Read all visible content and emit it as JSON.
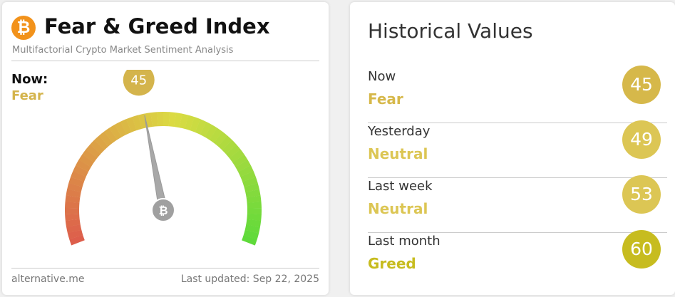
{
  "header": {
    "icon": "₿",
    "title": "Fear & Greed Index",
    "subtitle": "Multifactorial Crypto Market Sentiment Analysis"
  },
  "now": {
    "label": "Now:",
    "classification": "Fear",
    "value": 45,
    "color": "#d4b44c"
  },
  "footer": {
    "source": "alternative.me",
    "updated": "Last updated: Sep 22, 2025"
  },
  "historical": {
    "title": "Historical Values",
    "rows": [
      {
        "label": "Now",
        "classification": "Fear",
        "value": 45,
        "color": "#d6b84a"
      },
      {
        "label": "Yesterday",
        "classification": "Neutral",
        "value": 49,
        "color": "#dcc654"
      },
      {
        "label": "Last week",
        "classification": "Neutral",
        "value": 53,
        "color": "#dcc654"
      },
      {
        "label": "Last month",
        "classification": "Greed",
        "value": 60,
        "color": "#c7bc1f"
      }
    ]
  }
}
